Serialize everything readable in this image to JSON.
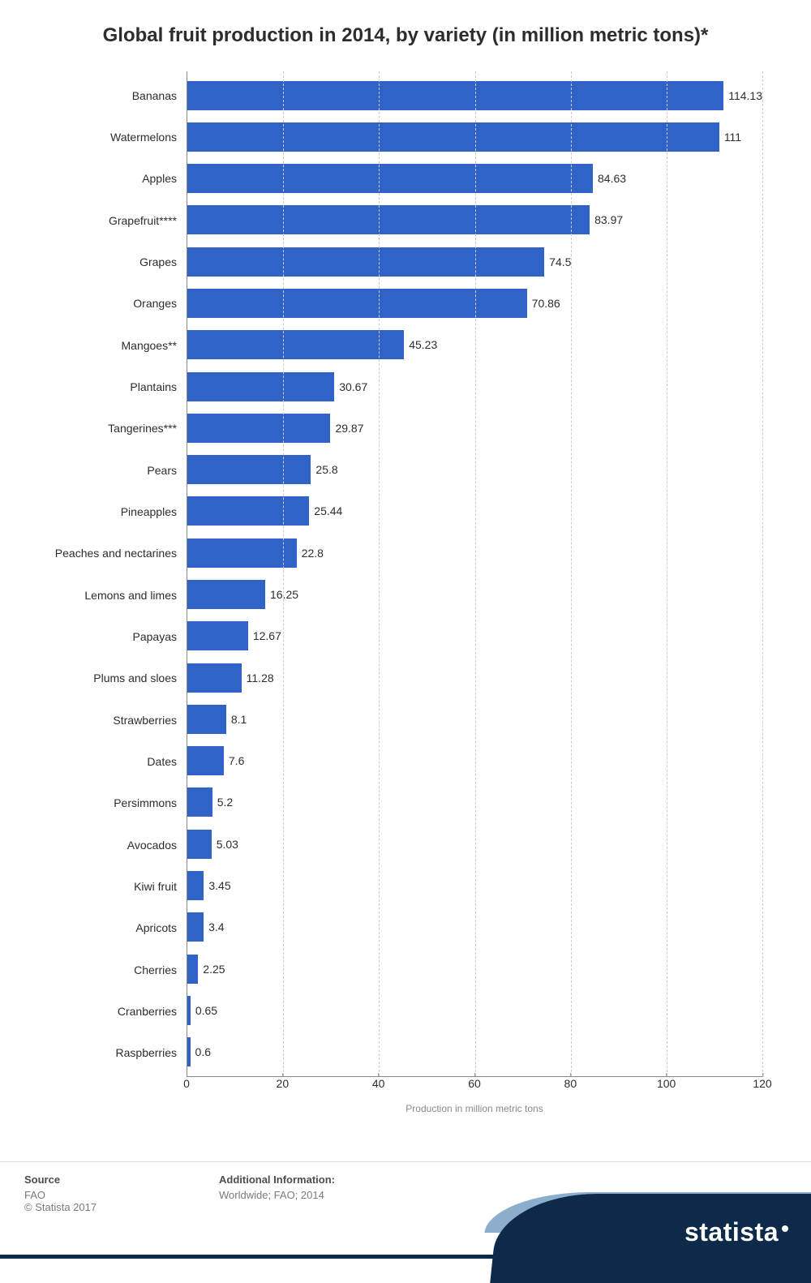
{
  "chart": {
    "type": "bar-horizontal",
    "title": "Global fruit production in 2014, by variety (in million metric tons)*",
    "x_axis_label": "Production in million metric tons",
    "xlim_max": 120,
    "xtick_step": 20,
    "xticks": [
      0,
      20,
      40,
      60,
      80,
      100,
      120
    ],
    "bar_color": "#3063c7",
    "grid_color": "#cccccc",
    "axis_color": "#888888",
    "background_color": "#ffffff",
    "title_fontsize": 24,
    "label_fontsize": 14,
    "value_fontsize": 14,
    "categories": [
      "Bananas",
      "Watermelons",
      "Apples",
      "Grapefruit****",
      "Grapes",
      "Oranges",
      "Mangoes**",
      "Plantains",
      "Tangerines***",
      "Pears",
      "Pineapples",
      "Peaches and nectarines",
      "Lemons and limes",
      "Papayas",
      "Plums and sloes",
      "Strawberries",
      "Dates",
      "Persimmons",
      "Avocados",
      "Kiwi fruit",
      "Apricots",
      "Cherries",
      "Cranberries",
      "Raspberries"
    ],
    "values": [
      114.13,
      111,
      84.63,
      83.97,
      74.5,
      70.86,
      45.23,
      30.67,
      29.87,
      25.8,
      25.44,
      22.8,
      16.25,
      12.67,
      11.28,
      8.1,
      7.6,
      5.2,
      5.03,
      3.45,
      3.4,
      2.25,
      0.65,
      0.6
    ]
  },
  "footer": {
    "source_header": "Source",
    "source_text": "FAO",
    "copyright": "© Statista 2017",
    "addl_header": "Additional Information:",
    "addl_text": "Worldwide; FAO; 2014",
    "logo_text": "statista"
  }
}
